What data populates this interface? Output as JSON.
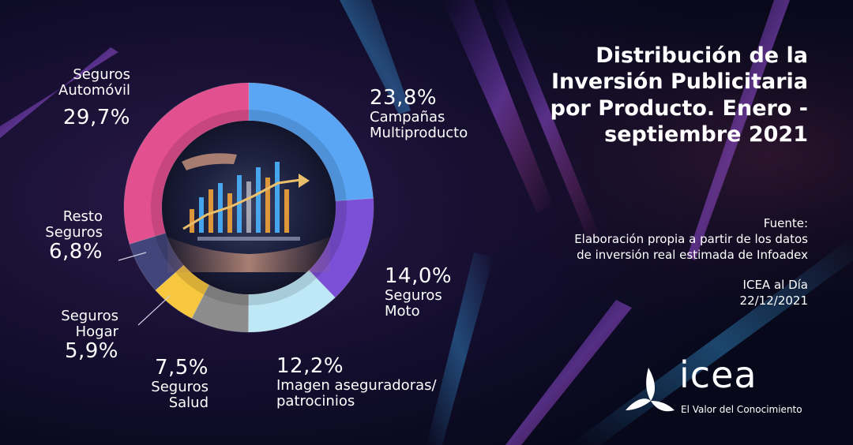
{
  "title": "Distribución de la Inversión Publicitaria por Producto. Enero - septiembre 2021",
  "source": {
    "label": "Fuente:",
    "line1": "Elaboración propia a partir de los datos",
    "line2": "de inversión real estimada de Infoadex",
    "publisher": "ICEA al Día",
    "date": "22/12/2021"
  },
  "logo": {
    "word": "icea",
    "tagline": "El Valor del Conocimiento"
  },
  "chart_data": {
    "type": "pie",
    "title": "Distribución de la Inversión Publicitaria por Producto. Enero - septiembre 2021",
    "slices": [
      {
        "id": "camp",
        "label_lines": [
          "Campañas",
          "Multiproducto"
        ],
        "value": 23.8,
        "display": "23,8%",
        "color": "#5aa6f5"
      },
      {
        "id": "moto",
        "label_lines": [
          "Seguros",
          "Moto"
        ],
        "value": 14.0,
        "display": "14,0%",
        "color": "#7b4fd6"
      },
      {
        "id": "imagen",
        "label_lines": [
          "Imagen aseguradoras/",
          "patrocinios"
        ],
        "value": 12.2,
        "display": "12,2%",
        "color": "#bfe8f6"
      },
      {
        "id": "salud",
        "label_lines": [
          "Seguros",
          "Salud"
        ],
        "value": 7.5,
        "display": "7,5%",
        "color": "#8c8c8c"
      },
      {
        "id": "hogar",
        "label_lines": [
          "Seguros",
          "Hogar"
        ],
        "value": 5.9,
        "display": "5,9%",
        "color": "#f6c73f"
      },
      {
        "id": "resto",
        "label_lines": [
          "Resto",
          "Seguros"
        ],
        "value": 6.8,
        "display": "6,8%",
        "color": "#41457a"
      },
      {
        "id": "auto",
        "label_lines": [
          "Seguros",
          "Automóvil"
        ],
        "value": 29.7,
        "display": "29,7%",
        "color": "#e2508f"
      }
    ],
    "start_angle_deg": 0,
    "direction": "clockwise",
    "legend": "none"
  }
}
